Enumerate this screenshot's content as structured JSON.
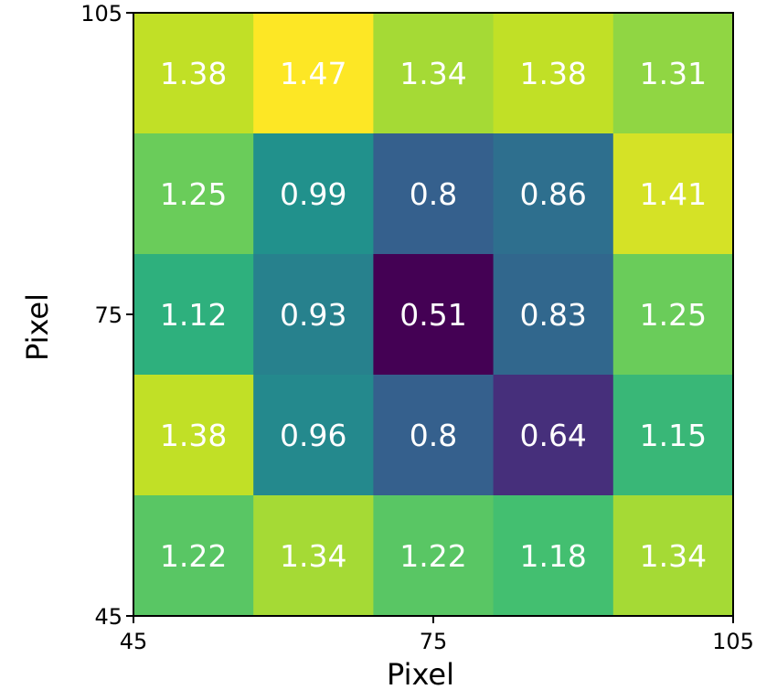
{
  "chart_data": {
    "type": "heatmap",
    "title": "",
    "xlabel": "Pixel",
    "ylabel": "Pixel",
    "xlim": [
      45,
      105
    ],
    "ylim": [
      45,
      105
    ],
    "x_ticks": [
      "45",
      "75",
      "105"
    ],
    "y_ticks": [
      "45",
      "75",
      "105"
    ],
    "colormap": "viridis",
    "value_range": [
      0.51,
      1.47
    ],
    "grid": false,
    "rows": [
      [
        "1.38",
        "1.47",
        "1.34",
        "1.38",
        "1.31"
      ],
      [
        "1.25",
        "0.99",
        "0.8",
        "0.86",
        "1.41"
      ],
      [
        "1.12",
        "0.93",
        "0.51",
        "0.83",
        "1.25"
      ],
      [
        "1.38",
        "0.96",
        "0.8",
        "0.64",
        "1.15"
      ],
      [
        "1.22",
        "1.34",
        "1.22",
        "1.18",
        "1.34"
      ]
    ],
    "label_color": "#ffffff"
  }
}
